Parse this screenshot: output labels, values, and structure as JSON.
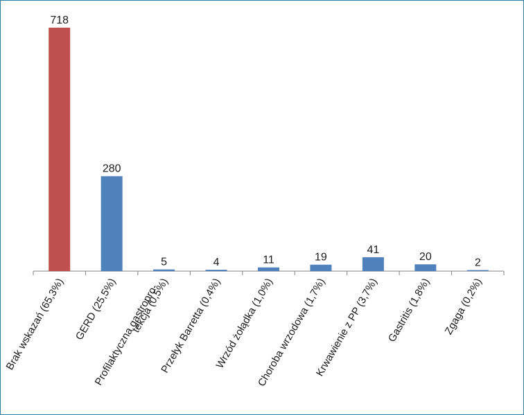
{
  "chart_data": {
    "type": "bar",
    "title": "",
    "xlabel": "",
    "ylabel": "",
    "ylim": [
      0,
      720
    ],
    "grid": false,
    "legend": "none",
    "categories": [
      "Brak wskazań (65,3%)",
      "GERD (25,5%)",
      "Profilaktyczna gastropro- tekcja (0,5%)",
      "Przełyk Barretta (0,4%)",
      "Wrzód żołądka (1,0%)",
      "Choroba wrzodowa (1,7%)",
      "Krwawienie z PP (3,7%)",
      "Gastritis (1,8%)",
      "Zgaga (0,2%)"
    ],
    "category_lines": [
      [
        "Brak wskazań (65,3%)"
      ],
      [
        "GERD (25,5%)"
      ],
      [
        "Profilaktyczna gastropro-",
        "tekcja (0,5%)"
      ],
      [
        "Przełyk Barretta (0,4%)"
      ],
      [
        "Wrzód żołądka (1,0%)"
      ],
      [
        "Choroba wrzodowa (1,7%)"
      ],
      [
        "Krwawienie z PP (3,7%)"
      ],
      [
        "Gastritis (1,8%)"
      ],
      [
        "Zgaga (0,2%)"
      ]
    ],
    "values": [
      718,
      280,
      5,
      4,
      11,
      19,
      41,
      20,
      2
    ],
    "value_labels": [
      "718",
      "280",
      "5",
      "4",
      "11",
      "19",
      "41",
      "20",
      "2"
    ],
    "colors": {
      "highlight": "#c0504d",
      "default": "#4f81bd",
      "axis": "#808080"
    },
    "highlight_index": 0
  }
}
